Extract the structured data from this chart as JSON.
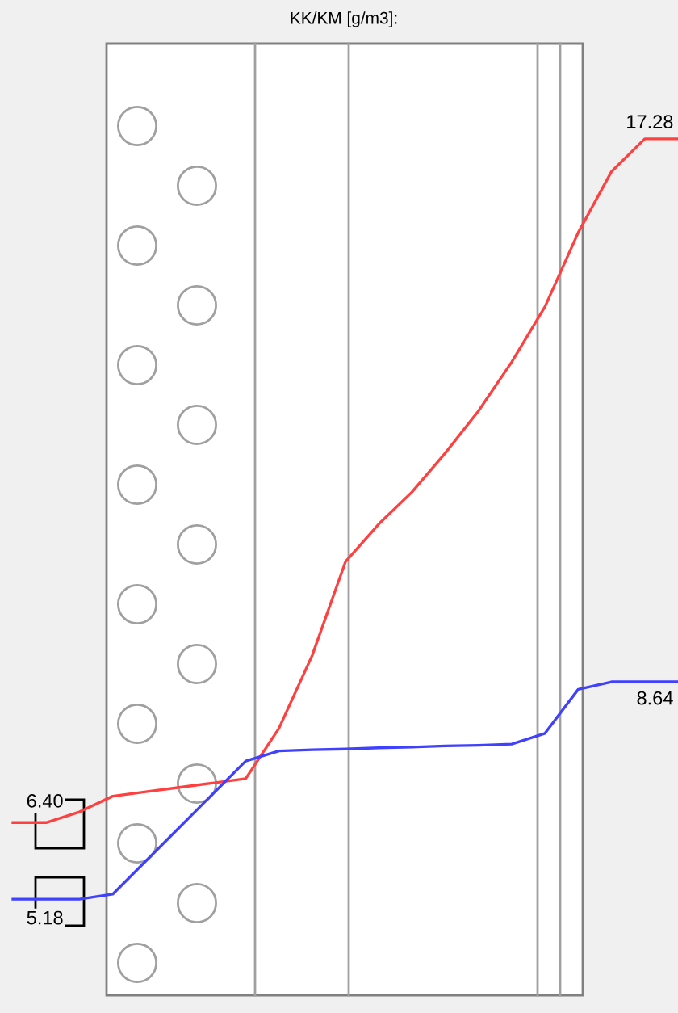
{
  "chart_data": {
    "type": "line",
    "title": "KK/KM [g/m3]:",
    "ylim": [
      3.37,
      19.49
    ],
    "line_style": "solid",
    "categories": [
      null,
      null,
      null,
      null,
      null,
      null,
      null,
      null,
      null,
      null,
      null,
      null,
      null,
      null,
      null,
      null,
      null,
      null,
      null,
      null,
      null
    ],
    "series": [
      {
        "color": "#ff4040",
        "values": [
          6.4,
          6.4,
          6.57,
          6.82,
          6.89,
          6.96,
          7.03,
          7.1,
          7.9,
          9.06,
          10.55,
          11.15,
          11.66,
          12.28,
          12.95,
          13.73,
          14.61,
          15.79,
          16.76,
          17.28,
          17.28
        ],
        "value_labels": [
          "6.40",
          null,
          null,
          null,
          null,
          null,
          null,
          null,
          null,
          null,
          null,
          null,
          null,
          null,
          null,
          null,
          null,
          null,
          null,
          null,
          "17.28"
        ]
      },
      {
        "color": "#4040ff",
        "values": [
          5.18,
          5.18,
          5.18,
          5.26,
          5.79,
          6.32,
          6.85,
          7.38,
          7.54,
          7.56,
          7.57,
          7.59,
          7.6,
          7.62,
          7.63,
          7.65,
          7.82,
          8.52,
          8.64,
          8.64,
          8.64
        ],
        "value_labels": [
          "5.18",
          null,
          null,
          null,
          null,
          null,
          null,
          null,
          null,
          null,
          null,
          null,
          null,
          null,
          null,
          null,
          null,
          null,
          null,
          null,
          "8.64"
        ]
      }
    ]
  }
}
